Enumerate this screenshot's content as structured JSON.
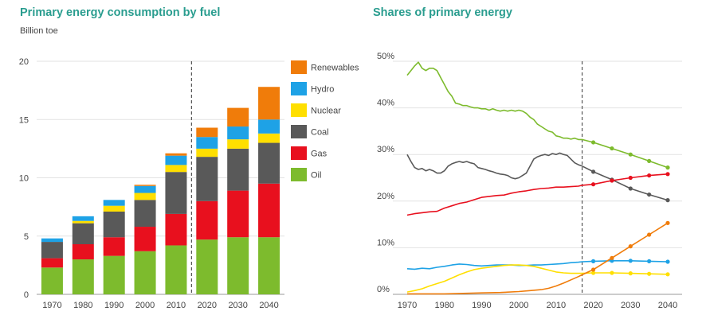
{
  "chart_data": [
    {
      "type": "bar",
      "stacked": true,
      "title": "Primary energy consumption by fuel",
      "ylabel": "Billion toe",
      "categories": [
        "1970",
        "1980",
        "1990",
        "2000",
        "2010",
        "2020",
        "2030",
        "2040"
      ],
      "ylim": [
        0,
        20
      ],
      "yticks": [
        "0",
        "5",
        "10",
        "15",
        "20"
      ],
      "grid": true,
      "projection_divider_after": "2010",
      "legend_position": "right",
      "series": [
        {
          "name": "Oil",
          "color": "#7dbb2d",
          "values": [
            2.3,
            3.0,
            3.3,
            3.7,
            4.2,
            4.7,
            4.9,
            4.9
          ]
        },
        {
          "name": "Gas",
          "color": "#e8101e",
          "values": [
            0.8,
            1.3,
            1.6,
            2.1,
            2.7,
            3.3,
            4.0,
            4.6
          ]
        },
        {
          "name": "Coal",
          "color": "#595959",
          "values": [
            1.4,
            1.8,
            2.2,
            2.3,
            3.6,
            3.8,
            3.6,
            3.5
          ]
        },
        {
          "name": "Nuclear",
          "color": "#ffdf00",
          "values": [
            0.0,
            0.2,
            0.5,
            0.6,
            0.6,
            0.7,
            0.8,
            0.8
          ]
        },
        {
          "name": "Hydro",
          "color": "#1ea2e6",
          "values": [
            0.3,
            0.4,
            0.5,
            0.6,
            0.8,
            1.0,
            1.1,
            1.2
          ]
        },
        {
          "name": "Renewables",
          "color": "#f07c0a",
          "values": [
            0.0,
            0.0,
            0.0,
            0.1,
            0.2,
            0.8,
            1.6,
            2.8
          ]
        }
      ]
    },
    {
      "type": "line",
      "title": "Shares of primary energy",
      "xlim": [
        1970,
        2040
      ],
      "xticks": [
        "1970",
        "1980",
        "1990",
        "2000",
        "2010",
        "2020",
        "2030",
        "2040"
      ],
      "ylim": [
        0,
        50
      ],
      "yticks": [
        "0%",
        "10%",
        "20%",
        "30%",
        "40%",
        "50%"
      ],
      "grid": true,
      "projection_divider_x": 2017,
      "series": [
        {
          "name": "Oil",
          "color": "#7dbb2d",
          "x": [
            1970,
            1971,
            1972,
            1973,
            1974,
            1975,
            1976,
            1977,
            1978,
            1979,
            1980,
            1981,
            1982,
            1983,
            1984,
            1985,
            1986,
            1987,
            1988,
            1989,
            1990,
            1991,
            1992,
            1993,
            1994,
            1995,
            1996,
            1997,
            1998,
            1999,
            2000,
            2001,
            2002,
            2003,
            2004,
            2005,
            2006,
            2007,
            2008,
            2009,
            2010,
            2011,
            2012,
            2013,
            2014,
            2015,
            2016,
            2017
          ],
          "y": [
            47,
            48,
            49,
            49.8,
            48.5,
            48,
            48.5,
            48.5,
            48,
            46.5,
            45,
            43.5,
            42.5,
            41,
            40.8,
            40.5,
            40.5,
            40.2,
            40,
            40,
            39.8,
            39.8,
            39.5,
            39.8,
            39.5,
            39.3,
            39.5,
            39.3,
            39.5,
            39.3,
            39.5,
            39.3,
            38.8,
            38,
            37.5,
            36.5,
            36,
            35.5,
            35,
            34.8,
            34,
            33.8,
            33.5,
            33.5,
            33.3,
            33.5,
            33.2,
            33.2
          ],
          "projection_x": [
            2020,
            2025,
            2030,
            2035,
            2040
          ],
          "projection_y": [
            32.6,
            31.3,
            30,
            28.6,
            27.2
          ]
        },
        {
          "name": "Coal",
          "color": "#595959",
          "x": [
            1970,
            1971,
            1972,
            1973,
            1974,
            1975,
            1976,
            1977,
            1978,
            1979,
            1980,
            1981,
            1982,
            1983,
            1984,
            1985,
            1986,
            1987,
            1988,
            1989,
            1990,
            1991,
            1992,
            1993,
            1994,
            1995,
            1996,
            1997,
            1998,
            1999,
            2000,
            2001,
            2002,
            2003,
            2004,
            2005,
            2006,
            2007,
            2008,
            2009,
            2010,
            2011,
            2012,
            2013,
            2014,
            2015,
            2016,
            2017
          ],
          "y": [
            30,
            28.5,
            27.2,
            26.8,
            27,
            26.5,
            26.8,
            26.5,
            26,
            26,
            26.5,
            27.5,
            28,
            28.3,
            28.5,
            28.3,
            28.5,
            28.2,
            28,
            27.2,
            27,
            26.8,
            26.5,
            26.3,
            26,
            25.8,
            25.7,
            25.5,
            25,
            24.8,
            25,
            25.5,
            26,
            27.5,
            29,
            29.5,
            29.8,
            30,
            29.8,
            30.2,
            30,
            30.3,
            30,
            29.8,
            29,
            28.2,
            27.8,
            27.5
          ],
          "projection_x": [
            2020,
            2025,
            2030,
            2035,
            2040
          ],
          "projection_y": [
            26.3,
            24.6,
            22.7,
            21.4,
            20.2
          ]
        },
        {
          "name": "Gas",
          "color": "#e8101e",
          "x": [
            1970,
            1972,
            1974,
            1976,
            1978,
            1980,
            1982,
            1984,
            1986,
            1988,
            1990,
            1992,
            1994,
            1996,
            1998,
            2000,
            2002,
            2004,
            2006,
            2008,
            2010,
            2012,
            2014,
            2016,
            2017
          ],
          "y": [
            17,
            17.3,
            17.5,
            17.7,
            17.8,
            18.5,
            19,
            19.5,
            19.8,
            20.3,
            20.8,
            21,
            21.2,
            21.3,
            21.7,
            22,
            22.2,
            22.5,
            22.7,
            22.8,
            23,
            23,
            23.1,
            23.2,
            23.4
          ],
          "projection_x": [
            2020,
            2025,
            2030,
            2035,
            2040
          ],
          "projection_y": [
            23.6,
            24.4,
            25,
            25.5,
            25.8
          ]
        },
        {
          "name": "Hydro",
          "color": "#1ea2e6",
          "x": [
            1970,
            1972,
            1974,
            1976,
            1978,
            1980,
            1982,
            1984,
            1986,
            1988,
            1990,
            1992,
            1994,
            1996,
            1998,
            2000,
            2002,
            2004,
            2006,
            2008,
            2010,
            2012,
            2014,
            2016,
            2017
          ],
          "y": [
            5.5,
            5.4,
            5.6,
            5.5,
            5.8,
            6,
            6.3,
            6.5,
            6.4,
            6.2,
            6.1,
            6.2,
            6.3,
            6.3,
            6.3,
            6.2,
            6.2,
            6.3,
            6.3,
            6.4,
            6.5,
            6.6,
            6.8,
            6.9,
            7
          ],
          "projection_x": [
            2020,
            2025,
            2030,
            2035,
            2040
          ],
          "projection_y": [
            7.1,
            7.2,
            7.2,
            7.1,
            7
          ]
        },
        {
          "name": "Nuclear",
          "color": "#ffdf00",
          "x": [
            1970,
            1972,
            1974,
            1976,
            1978,
            1980,
            1982,
            1984,
            1986,
            1988,
            1990,
            1992,
            1994,
            1996,
            1998,
            2000,
            2002,
            2004,
            2006,
            2008,
            2010,
            2012,
            2014,
            2016,
            2017
          ],
          "y": [
            0.5,
            0.8,
            1.2,
            1.8,
            2.3,
            2.8,
            3.5,
            4.2,
            4.8,
            5.3,
            5.6,
            5.8,
            6,
            6.2,
            6.3,
            6.3,
            6.2,
            6,
            5.6,
            5.2,
            4.8,
            4.6,
            4.5,
            4.5,
            4.5
          ],
          "projection_x": [
            2020,
            2025,
            2030,
            2035,
            2040
          ],
          "projection_y": [
            4.6,
            4.6,
            4.5,
            4.4,
            4.3
          ]
        },
        {
          "name": "Renewables",
          "color": "#f07c0a",
          "x": [
            1970,
            1975,
            1980,
            1985,
            1990,
            1995,
            2000,
            2003,
            2006,
            2008,
            2010,
            2012,
            2014,
            2016,
            2017
          ],
          "y": [
            0.1,
            0.1,
            0.1,
            0.2,
            0.3,
            0.4,
            0.6,
            0.8,
            1.0,
            1.3,
            1.8,
            2.4,
            3.1,
            3.8,
            4.2
          ],
          "projection_x": [
            2020,
            2025,
            2030,
            2035,
            2040
          ],
          "projection_y": [
            5.3,
            7.8,
            10.3,
            12.8,
            15.3
          ]
        }
      ]
    }
  ]
}
